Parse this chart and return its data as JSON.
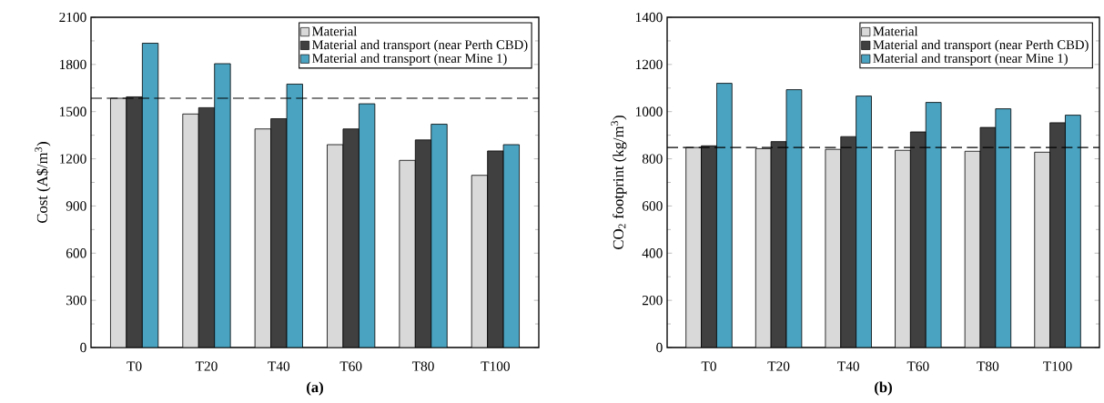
{
  "chart_data": [
    {
      "type": "bar",
      "xlabel": "(a)",
      "ylabel": "Cost (A$/m$^{3}$)",
      "categories": [
        "T0",
        "T20",
        "T40",
        "T60",
        "T80",
        "T100"
      ],
      "series": [
        {
          "name": "Material",
          "color": "#d9d9d9",
          "values": [
            1585,
            1485,
            1390,
            1290,
            1190,
            1095
          ]
        },
        {
          "name": "Material and transport (near Perth CBD)",
          "color": "#404040",
          "values": [
            1595,
            1525,
            1455,
            1390,
            1320,
            1250
          ]
        },
        {
          "name": "Material and transport (near Mine 1)",
          "color": "#4aa3c1",
          "values": [
            1935,
            1805,
            1675,
            1550,
            1420,
            1290
          ]
        }
      ],
      "ylim": [
        0,
        2100
      ],
      "yticks": [
        0,
        300,
        600,
        900,
        1200,
        1500,
        1800,
        2100
      ],
      "ref_lines": [
        {
          "axis": "y",
          "value": 1585,
          "line_style": "dashed"
        }
      ],
      "legend": "top right"
    },
    {
      "type": "bar",
      "xlabel": "(b)",
      "ylabel": "CO$_{2}$ footprint (kg/m$^{3}$)",
      "categories": [
        "T0",
        "T20",
        "T40",
        "T60",
        "T80",
        "T100"
      ],
      "series": [
        {
          "name": "Material",
          "color": "#d9d9d9",
          "values": [
            848,
            843,
            840,
            836,
            832,
            828
          ]
        },
        {
          "name": "Material and transport (near Perth CBD)",
          "color": "#404040",
          "values": [
            855,
            873,
            894,
            914,
            933,
            953
          ]
        },
        {
          "name": "Material and transport (near Mine 1)",
          "color": "#4aa3c1",
          "values": [
            1120,
            1093,
            1066,
            1039,
            1012,
            985
          ]
        }
      ],
      "ylim": [
        0,
        1400
      ],
      "yticks": [
        0,
        200,
        400,
        600,
        800,
        1000,
        1200,
        1400
      ],
      "ref_lines": [
        {
          "axis": "y",
          "value": 848,
          "line_style": "dashed"
        }
      ],
      "legend": "top right"
    }
  ]
}
